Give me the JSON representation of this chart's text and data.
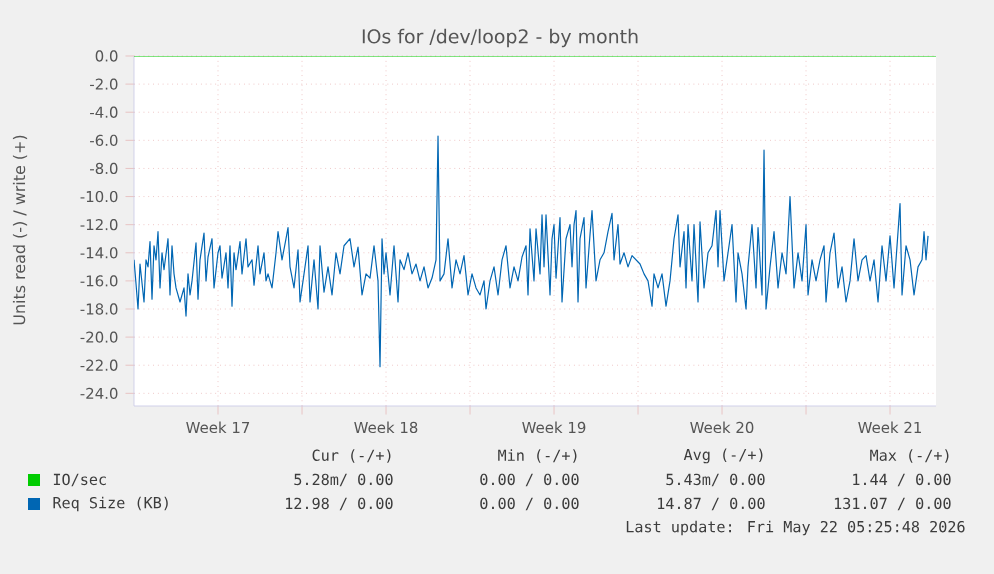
{
  "chart_data": {
    "type": "line",
    "title": "IOs for /dev/loop2 - by month",
    "ylabel": "Units read (-) / write (+)",
    "xlim": [
      "2026-04-20T00:00",
      "2026-05-23T10:00"
    ],
    "xticks": [
      {
        "value": "2026-04-23T12:00",
        "label": "Week 17"
      },
      {
        "value": "2026-04-27",
        "label": null
      },
      {
        "value": "2026-04-30T12:00",
        "label": "Week 18"
      },
      {
        "value": "2026-05-04",
        "label": null
      },
      {
        "value": "2026-05-07T12:00",
        "label": "Week 19"
      },
      {
        "value": "2026-05-11",
        "label": null
      },
      {
        "value": "2026-05-14T12:00",
        "label": "Week 20"
      },
      {
        "value": "2026-05-18",
        "label": null
      },
      {
        "value": "2026-05-21T12:00",
        "label": "Week 21"
      }
    ],
    "ylim": [
      -24.9,
      0
    ],
    "yticks": [
      {
        "value": 0,
        "label": "0.0"
      },
      {
        "value": -2,
        "label": "-2.0"
      },
      {
        "value": -4,
        "label": "-4.0"
      },
      {
        "value": -6,
        "label": "-6.0"
      },
      {
        "value": -8,
        "label": "-8.0"
      },
      {
        "value": -10,
        "label": "-10.0"
      },
      {
        "value": -12,
        "label": "-12.0"
      },
      {
        "value": -14,
        "label": "-14.0"
      },
      {
        "value": -16,
        "label": "-16.0"
      },
      {
        "value": -18,
        "label": "-18.0"
      },
      {
        "value": -20,
        "label": "-20.0"
      },
      {
        "value": -22,
        "label": "-22.0"
      },
      {
        "value": -24,
        "label": "-24.0"
      }
    ],
    "grid": true,
    "legend": "bottom",
    "series": [
      {
        "name": "IO/sec",
        "color": "#00cc00",
        "x": [
          "2026-04-20T00:00",
          "2026-05-23T10:00"
        ],
        "values": [
          0,
          0
        ]
      },
      {
        "name": "Req Size (KB)",
        "color": "#0066b3",
        "x": [
          "2026-04-20T00:00",
          "2026-04-20T02:00",
          "2026-04-20T04:00",
          "2026-04-20T06:00",
          "2026-04-20T10:00",
          "2026-04-20T12:00",
          "2026-04-20T14:00",
          "2026-04-20T16:00",
          "2026-04-20T18:00",
          "2026-04-20T20:00",
          "2026-04-20T22:00",
          "2026-04-21T00:00",
          "2026-04-21T02:00",
          "2026-04-21T04:00",
          "2026-04-21T06:00",
          "2026-04-21T10:00",
          "2026-04-21T12:00",
          "2026-04-21T14:00",
          "2026-04-21T16:00",
          "2026-04-21T18:00",
          "2026-04-21T22:00",
          "2026-04-22T02:00",
          "2026-04-22T04:00",
          "2026-04-22T06:00",
          "2026-04-22T08:00",
          "2026-04-22T10:00",
          "2026-04-22T14:00",
          "2026-04-22T16:00",
          "2026-04-22T18:00",
          "2026-04-22T22:00",
          "2026-04-23T00:00",
          "2026-04-23T02:00",
          "2026-04-23T06:00",
          "2026-04-23T08:00",
          "2026-04-23T12:00",
          "2026-04-23T14:00",
          "2026-04-23T16:00",
          "2026-04-23T20:00",
          "2026-04-23T22:00",
          "2026-04-24T00:00",
          "2026-04-24T02:00",
          "2026-04-24T04:00",
          "2026-04-24T06:00",
          "2026-04-24T10:00",
          "2026-04-24T12:00",
          "2026-04-24T16:00",
          "2026-04-24T18:00",
          "2026-04-24T22:00",
          "2026-04-25T00:00",
          "2026-04-25T04:00",
          "2026-04-25T06:00",
          "2026-04-25T10:00",
          "2026-04-25T12:00",
          "2026-04-25T14:00",
          "2026-04-25T18:00",
          "2026-04-25T22:00",
          "2026-04-26T00:00",
          "2026-04-26T04:00",
          "2026-04-26T08:00",
          "2026-04-26T10:00",
          "2026-04-26T12:00",
          "2026-04-26T16:00",
          "2026-04-26T20:00",
          "2026-04-26T22:00",
          "2026-04-27T02:00",
          "2026-04-27T06:00",
          "2026-04-27T08:00",
          "2026-04-27T12:00",
          "2026-04-27T16:00",
          "2026-04-27T18:00",
          "2026-04-27T22:00",
          "2026-04-28T02:00",
          "2026-04-28T06:00",
          "2026-04-28T10:00",
          "2026-04-28T14:00",
          "2026-04-28T18:00",
          "2026-04-29T00:00",
          "2026-04-29T04:00",
          "2026-04-29T08:00",
          "2026-04-29T12:00",
          "2026-04-29T16:00",
          "2026-04-29T20:00",
          "2026-04-30T00:00",
          "2026-04-30T04:00",
          "2026-04-30T06:00",
          "2026-04-30T08:00",
          "2026-04-30T10:00",
          "2026-04-30T12:00",
          "2026-04-30T16:00",
          "2026-04-30T20:00",
          "2026-05-01T00:00",
          "2026-05-01T02:00",
          "2026-05-01T06:00",
          "2026-05-01T10:00",
          "2026-05-01T14:00",
          "2026-05-01T18:00",
          "2026-05-01T22:00",
          "2026-05-02T02:00",
          "2026-05-02T06:00",
          "2026-05-02T10:00",
          "2026-05-02T14:00",
          "2026-05-02T16:00",
          "2026-05-02T18:00",
          "2026-05-02T22:00",
          "2026-05-03T02:00",
          "2026-05-03T06:00",
          "2026-05-03T10:00",
          "2026-05-03T14:00",
          "2026-05-03T18:00",
          "2026-05-03T22:00",
          "2026-05-04T02:00",
          "2026-05-04T06:00",
          "2026-05-04T10:00",
          "2026-05-04T14:00",
          "2026-05-04T16:00",
          "2026-05-04T20:00",
          "2026-05-05T00:00",
          "2026-05-05T04:00",
          "2026-05-05T08:00",
          "2026-05-05T12:00",
          "2026-05-05T16:00",
          "2026-05-05T20:00",
          "2026-05-06T00:00",
          "2026-05-06T04:00",
          "2026-05-06T08:00",
          "2026-05-06T10:00",
          "2026-05-06T12:00",
          "2026-05-06T16:00",
          "2026-05-06T18:00",
          "2026-05-06T22:00",
          "2026-05-07T00:00",
          "2026-05-07T02:00",
          "2026-05-07T04:00",
          "2026-05-07T08:00",
          "2026-05-07T10:00",
          "2026-05-07T12:00",
          "2026-05-07T14:00",
          "2026-05-07T18:00",
          "2026-05-07T20:00",
          "2026-05-08T00:00",
          "2026-05-08T04:00",
          "2026-05-08T06:00",
          "2026-05-08T08:00",
          "2026-05-08T10:00",
          "2026-05-08T12:00",
          "2026-05-08T14:00",
          "2026-05-08T18:00",
          "2026-05-08T20:00",
          "2026-05-09T00:00",
          "2026-05-09T02:00",
          "2026-05-09T06:00",
          "2026-05-09T10:00",
          "2026-05-09T14:00",
          "2026-05-09T18:00",
          "2026-05-09T22:00",
          "2026-05-10T00:00",
          "2026-05-10T04:00",
          "2026-05-10T06:00",
          "2026-05-10T10:00",
          "2026-05-10T14:00",
          "2026-05-10T18:00",
          "2026-05-10T22:00",
          "2026-05-11T02:00",
          "2026-05-11T06:00",
          "2026-05-11T10:00",
          "2026-05-11T14:00",
          "2026-05-11T16:00",
          "2026-05-11T20:00",
          "2026-05-12T00:00",
          "2026-05-12T04:00",
          "2026-05-12T08:00",
          "2026-05-12T12:00",
          "2026-05-12T16:00",
          "2026-05-12T18:00",
          "2026-05-12T22:00",
          "2026-05-13T00:00",
          "2026-05-13T02:00",
          "2026-05-13T06:00",
          "2026-05-13T08:00",
          "2026-05-13T12:00",
          "2026-05-13T14:00",
          "2026-05-13T18:00",
          "2026-05-13T22:00",
          "2026-05-14T02:00",
          "2026-05-14T06:00",
          "2026-05-14T08:00",
          "2026-05-14T10:00",
          "2026-05-14T14:00",
          "2026-05-14T18:00",
          "2026-05-14T22:00",
          "2026-05-15T02:00",
          "2026-05-15T04:00",
          "2026-05-15T08:00",
          "2026-05-15T12:00",
          "2026-05-15T14:00",
          "2026-05-15T18:00",
          "2026-05-15T22:00",
          "2026-05-16T00:00",
          "2026-05-16T04:00",
          "2026-05-16T06:00",
          "2026-05-16T08:00",
          "2026-05-16T12:00",
          "2026-05-16T16:00",
          "2026-05-16T20:00",
          "2026-05-17T00:00",
          "2026-05-17T04:00",
          "2026-05-17T08:00",
          "2026-05-17T12:00",
          "2026-05-17T16:00",
          "2026-05-17T20:00",
          "2026-05-18T00:00",
          "2026-05-18T02:00",
          "2026-05-18T06:00",
          "2026-05-18T10:00",
          "2026-05-18T14:00",
          "2026-05-18T18:00",
          "2026-05-18T20:00",
          "2026-05-19T00:00",
          "2026-05-19T04:00",
          "2026-05-19T08:00",
          "2026-05-19T12:00",
          "2026-05-19T16:00",
          "2026-05-19T20:00",
          "2026-05-20T00:00",
          "2026-05-20T04:00",
          "2026-05-20T08:00",
          "2026-05-20T12:00",
          "2026-05-20T16:00",
          "2026-05-20T20:00",
          "2026-05-21T00:00",
          "2026-05-21T04:00",
          "2026-05-21T08:00",
          "2026-05-21T12:00",
          "2026-05-21T16:00",
          "2026-05-21T20:00",
          "2026-05-21T22:00",
          "2026-05-22T00:00",
          "2026-05-22T04:00",
          "2026-05-22T08:00",
          "2026-05-22T12:00",
          "2026-05-22T16:00",
          "2026-05-22T20:00",
          "2026-05-22T22:00",
          "2026-05-23T00:00",
          "2026-05-23T02:00"
        ],
        "values": [
          -14.5,
          -16.2,
          -18,
          -14.8,
          -17.5,
          -14.5,
          -15,
          -13.2,
          -17.3,
          -13.5,
          -14.5,
          -12.5,
          -16.5,
          -14,
          -15.2,
          -13,
          -17,
          -13.5,
          -15.5,
          -16.5,
          -17.5,
          -16.5,
          -18.5,
          -15.5,
          -17,
          -16,
          -13.3,
          -17.3,
          -14.5,
          -12.6,
          -16,
          -14.3,
          -13,
          -16.5,
          -14,
          -13.5,
          -15.8,
          -14,
          -16.5,
          -13.5,
          -17.8,
          -14,
          -15.2,
          -13.2,
          -15.5,
          -13,
          -15,
          -14.5,
          -16.3,
          -13.5,
          -15.5,
          -14,
          -16,
          -15.5,
          -16.5,
          -14,
          -12.5,
          -14.5,
          -13,
          -12.2,
          -15,
          -16.5,
          -13.8,
          -17.5,
          -15.5,
          -13.5,
          -17.5,
          -14.5,
          -18,
          -13.5,
          -16.8,
          -15,
          -17,
          -14,
          -15.5,
          -13.5,
          -13,
          -15,
          -13.6,
          -17,
          -15.5,
          -15.8,
          -13.5,
          -16,
          -22.1,
          -13,
          -15.5,
          -14,
          -17,
          -13.5,
          -17.5,
          -14.5,
          -15.2,
          -14,
          -15.5,
          -14.8,
          -16,
          -15,
          -16.5,
          -15.8,
          -14.5,
          -5.7,
          -16,
          -15.5,
          -13,
          -16.5,
          -14.5,
          -15.5,
          -14.2,
          -17,
          -15.5,
          -16.5,
          -17,
          -16,
          -18,
          -16,
          -15,
          -17,
          -14.5,
          -13.5,
          -16.5,
          -15,
          -16,
          -14.3,
          -13.5,
          -17,
          -12.3,
          -16,
          -12.3,
          -15.5,
          -11.3,
          -15,
          -11.3,
          -17,
          -13,
          -12,
          -15.8,
          -11.5,
          -17.5,
          -13,
          -12,
          -15,
          -12,
          -11,
          -17.5,
          -13,
          -11.5,
          -16.5,
          -12.7,
          -11,
          -16,
          -14.5,
          -14,
          -12.5,
          -11.2,
          -14.5,
          -12,
          -14.8,
          -14,
          -15,
          -14.2,
          -14.5,
          -14.8,
          -15.5,
          -16,
          -17.8,
          -15.5,
          -16.5,
          -15.5,
          -17.8,
          -16,
          -13,
          -11.3,
          -15,
          -12.5,
          -16.5,
          -12,
          -16,
          -12,
          -17.5,
          -11.8,
          -16.5,
          -14,
          -13.5,
          -11,
          -15,
          -11,
          -16,
          -14,
          -12,
          -17.5,
          -14,
          -15.5,
          -18,
          -15,
          -12,
          -16.5,
          -12.2,
          -17,
          -6.7,
          -18,
          -15,
          -12.5,
          -16.5,
          -14,
          -15.5,
          -10,
          -16.5,
          -14,
          -16,
          -12,
          -17,
          -14.5,
          -16,
          -14.5,
          -13.5,
          -17.5,
          -14,
          -12.6,
          -16.5,
          -15,
          -17.5,
          -16,
          -13,
          -16,
          -14.5,
          -14.2,
          -16,
          -14.5,
          -17.5,
          -13.5,
          -16,
          -12.8,
          -16.5,
          -12.5,
          -10.5,
          -17,
          -13.5,
          -14.5,
          -17,
          -15,
          -14.5,
          -12.5,
          -14.5,
          -12.8
        ]
      }
    ],
    "annotations": [
      "Cur (-/+)",
      "Min (-/+)",
      "Avg (-/+)",
      "Max (-/+)",
      "5.28m/ 0.00",
      "0.00 / 0.00",
      "5.43m/ 0.00",
      "1.44 / 0.00",
      "12.98 / 0.00",
      "0.00 / 0.00",
      "14.87 / 0.00",
      "131.07 / 0.00",
      "Last update: Fri May 22 05:25:48 2026"
    ]
  }
}
